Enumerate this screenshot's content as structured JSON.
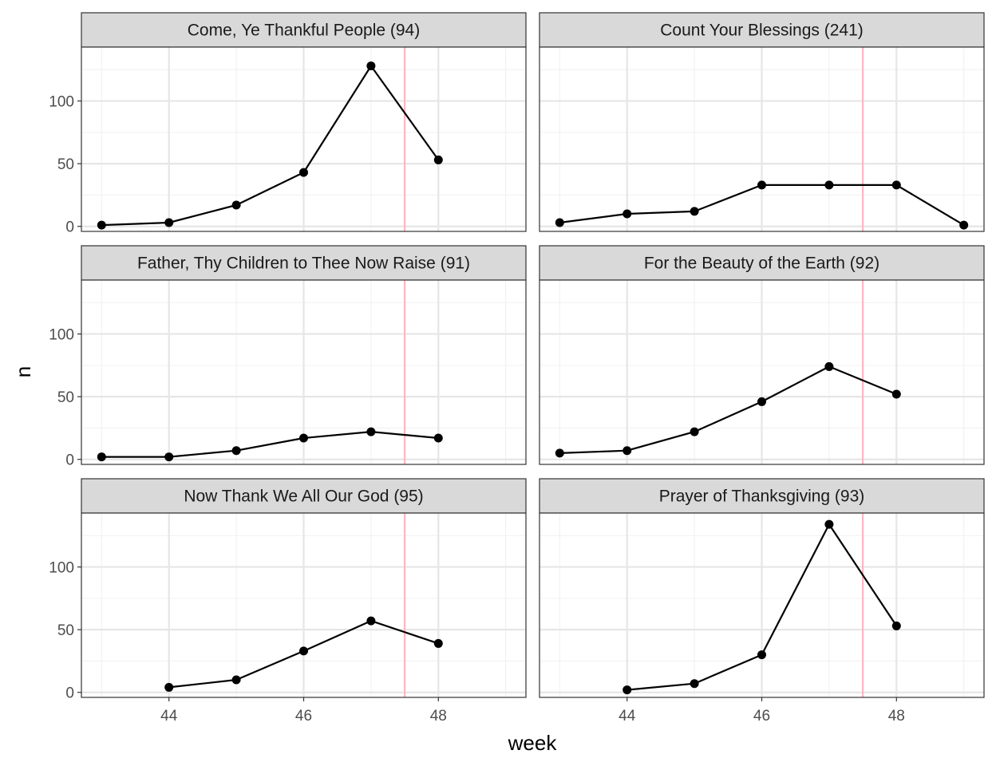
{
  "chart_data": {
    "type": "line",
    "layout": "facet-grid",
    "xlabel": "week",
    "ylabel": "n",
    "xlim": [
      42.7,
      49.3
    ],
    "ylim": [
      -4,
      143
    ],
    "x_ticks": [
      44,
      46,
      48
    ],
    "y_ticks": [
      0,
      50,
      100
    ],
    "grid": true,
    "reference_line": {
      "x": 47.5,
      "color": "#ffb6c1"
    },
    "line_color": "#000000",
    "point_color": "#000000",
    "facets": [
      {
        "title": "Come, Ye Thankful People (94)",
        "x": [
          43,
          44,
          45,
          46,
          47,
          48
        ],
        "y": [
          1,
          3,
          17,
          43,
          128,
          53
        ]
      },
      {
        "title": "Count Your Blessings (241)",
        "x": [
          43,
          44,
          45,
          46,
          47,
          48,
          49
        ],
        "y": [
          3,
          10,
          12,
          33,
          33,
          33,
          1
        ]
      },
      {
        "title": "Father, Thy Children to Thee Now Raise (91)",
        "x": [
          43,
          44,
          45,
          46,
          47,
          48
        ],
        "y": [
          2,
          2,
          7,
          17,
          22,
          17
        ]
      },
      {
        "title": "For the Beauty of the Earth (92)",
        "x": [
          43,
          44,
          45,
          46,
          47,
          48
        ],
        "y": [
          5,
          7,
          22,
          46,
          74,
          52
        ]
      },
      {
        "title": "Now Thank We All Our God (95)",
        "x": [
          44,
          45,
          46,
          47,
          48
        ],
        "y": [
          4,
          10,
          33,
          57,
          39
        ]
      },
      {
        "title": "Prayer of Thanksgiving (93)",
        "x": [
          44,
          45,
          46,
          47,
          48
        ],
        "y": [
          2,
          7,
          30,
          134,
          53
        ]
      }
    ]
  }
}
